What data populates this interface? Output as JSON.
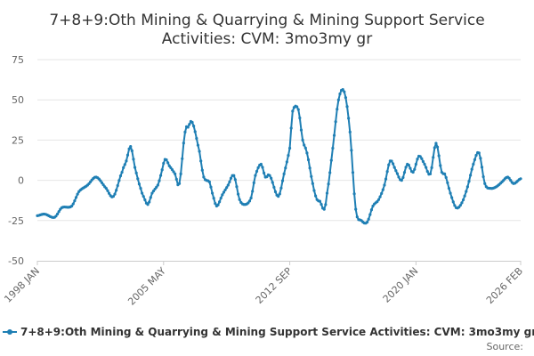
{
  "chart_data": {
    "type": "line",
    "title_line1": "7+8+9:Oth Mining & Quarrying & Mining Support Service",
    "title_line2": "Activities: CVM: 3mo3my gr",
    "series": [
      {
        "name": "7+8+9:Oth Mining & Quarrying & Mining Support Service Activities: CVM: 3mo3my gr",
        "color": "#1f7fb4",
        "x": [
          "1998-01",
          "1998-06",
          "1999-01",
          "1999-06",
          "2000-01",
          "2000-06",
          "2000-12",
          "2001-06",
          "2002-01",
          "2002-06",
          "2002-12",
          "2003-03",
          "2003-06",
          "2003-09",
          "2004-01",
          "2004-03",
          "2004-06",
          "2004-09",
          "2005-01",
          "2005-03",
          "2005-06",
          "2005-09",
          "2006-01",
          "2006-04",
          "2006-08",
          "2006-10",
          "2007-01",
          "2007-06",
          "2007-09",
          "2008-01",
          "2008-03",
          "2008-06",
          "2008-10",
          "2009-02",
          "2009-06",
          "2009-10",
          "2010-02",
          "2010-06",
          "2010-09",
          "2011-01",
          "2011-04",
          "2011-07",
          "2012-01",
          "2012-05",
          "2012-09",
          "2012-11",
          "2013-03",
          "2013-06",
          "2013-09",
          "2014-01",
          "2014-04",
          "2014-06",
          "2014-09",
          "2014-11",
          "2015-03",
          "2015-07",
          "2015-11",
          "2016-03",
          "2016-07",
          "2016-11",
          "2017-03",
          "2017-07",
          "2017-11",
          "2018-03",
          "2018-07",
          "2018-11",
          "2019-03",
          "2019-07",
          "2019-11",
          "2020-03",
          "2020-07",
          "2020-11",
          "2021-03",
          "2021-07",
          "2021-09",
          "2022-01",
          "2022-05",
          "2022-09",
          "2023-01",
          "2023-05",
          "2023-09",
          "2024-01",
          "2024-05",
          "2024-09",
          "2025-01",
          "2025-05",
          "2025-09",
          "2026-02"
        ],
        "values": [
          -22,
          -21,
          -23,
          -17,
          -16,
          -7,
          -3,
          2,
          -5,
          -10,
          5,
          12,
          21,
          8,
          -5,
          -10,
          -15,
          -8,
          -3,
          3,
          13,
          9,
          4,
          -2,
          30,
          33,
          36,
          18,
          2,
          -1,
          -8,
          -16,
          -9,
          -3,
          3,
          -12,
          -15,
          -11,
          3,
          10,
          2,
          3,
          -10,
          4,
          20,
          43,
          44,
          25,
          17,
          -2,
          -12,
          -13,
          -18,
          -8,
          20,
          50,
          55,
          30,
          -18,
          -25,
          -26,
          -16,
          -12,
          -3,
          12,
          6,
          0,
          10,
          5,
          15,
          10,
          4,
          23,
          5,
          4,
          -8,
          -17,
          -14,
          -4,
          10,
          17,
          -2,
          -5,
          -4,
          -1,
          2,
          -2,
          1
        ]
      }
    ],
    "xtick_labels": [
      "1998 JAN",
      "2005 MAY",
      "2012 SEP",
      "2020 JAN",
      "2026 FEB"
    ],
    "yticks": [
      -50,
      -25,
      0,
      25,
      50,
      75
    ],
    "ylim": [
      -50,
      75
    ],
    "grid": "horizontal",
    "legend_position": "bottom",
    "source_label": "Source:"
  }
}
